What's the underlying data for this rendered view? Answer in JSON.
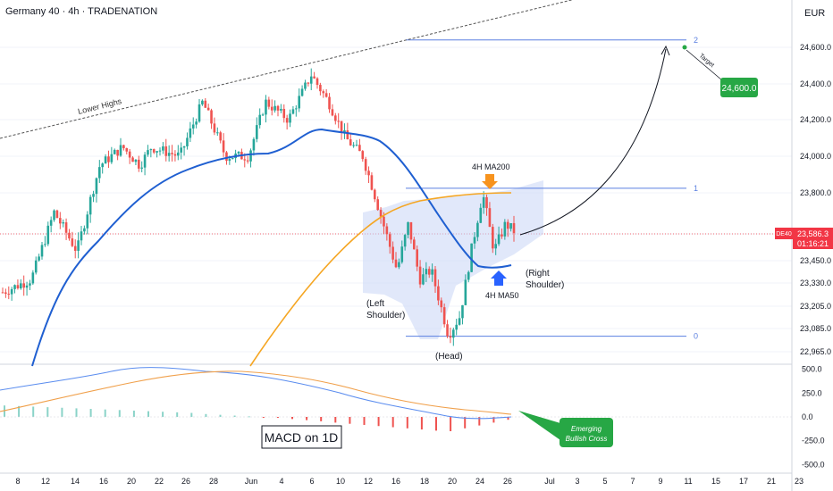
{
  "header": {
    "title": "Germany 40 · 4h · TRADENATION",
    "currency": "EUR"
  },
  "price_axis": {
    "ticks": [
      "24,600.0",
      "24,400.0",
      "24,200.0",
      "24,000.0",
      "23,800.0",
      "23,586.3",
      "23,450.0",
      "23,330.0",
      "23,205.0",
      "23,085.0",
      "22,965.0"
    ],
    "tick_values": [
      24600,
      24400,
      24200,
      24000,
      23800,
      23586.3,
      23450,
      23330,
      23205,
      23085,
      22965
    ],
    "current": {
      "symbol": "DE40",
      "price": "23,586.3",
      "countdown": "01:16:21",
      "color": "#f23645"
    }
  },
  "macd_axis": {
    "ticks": [
      "500.0",
      "250.0",
      "0.0",
      "-250.0",
      "-500.0"
    ],
    "tick_values": [
      500,
      250,
      0,
      -250,
      -500
    ]
  },
  "time_axis": {
    "labels": [
      "8",
      "12",
      "14",
      "16",
      "20",
      "22",
      "26",
      "28",
      "Jun",
      "4",
      "6",
      "10",
      "12",
      "16",
      "18",
      "20",
      "24",
      "26",
      "Jul",
      "3",
      "5",
      "7",
      "9",
      "11",
      "15",
      "17",
      "21",
      "23"
    ]
  },
  "chart_data": {
    "type": "candlestick",
    "main": {
      "ylim": [
        22890,
        24760
      ],
      "fib_levels": [
        {
          "label": "2",
          "price": 24640
        },
        {
          "label": "1",
          "price": 23825
        },
        {
          "label": "0",
          "price": 23045
        }
      ],
      "ma_labels": {
        "ma200": "4H MA200",
        "ma50": "4H MA50"
      },
      "target_label": "Target",
      "target_value": "24,600.0",
      "trendline_label": "Lower Highs",
      "patterns": {
        "left_shoulder": [
          "(Left",
          "Shoulder)"
        ],
        "head": "(Head)",
        "right_shoulder": [
          "(Right",
          "Shoulder)"
        ]
      },
      "colors": {
        "up": "#26a69a",
        "down": "#ef5350",
        "ma200": "#f5a623",
        "ma50": "#1f5fd1",
        "fib": "#5a7fe0",
        "target": "#27a745"
      }
    },
    "macd": {
      "label": "MACD on 1D",
      "annotation": [
        "Emerging",
        "Bullish Cross"
      ],
      "colors": {
        "macd": "#5b8def",
        "signal": "#f0a04b",
        "hist_pos": "#8ad3c8",
        "hist_neg": "#ef5350"
      }
    }
  }
}
